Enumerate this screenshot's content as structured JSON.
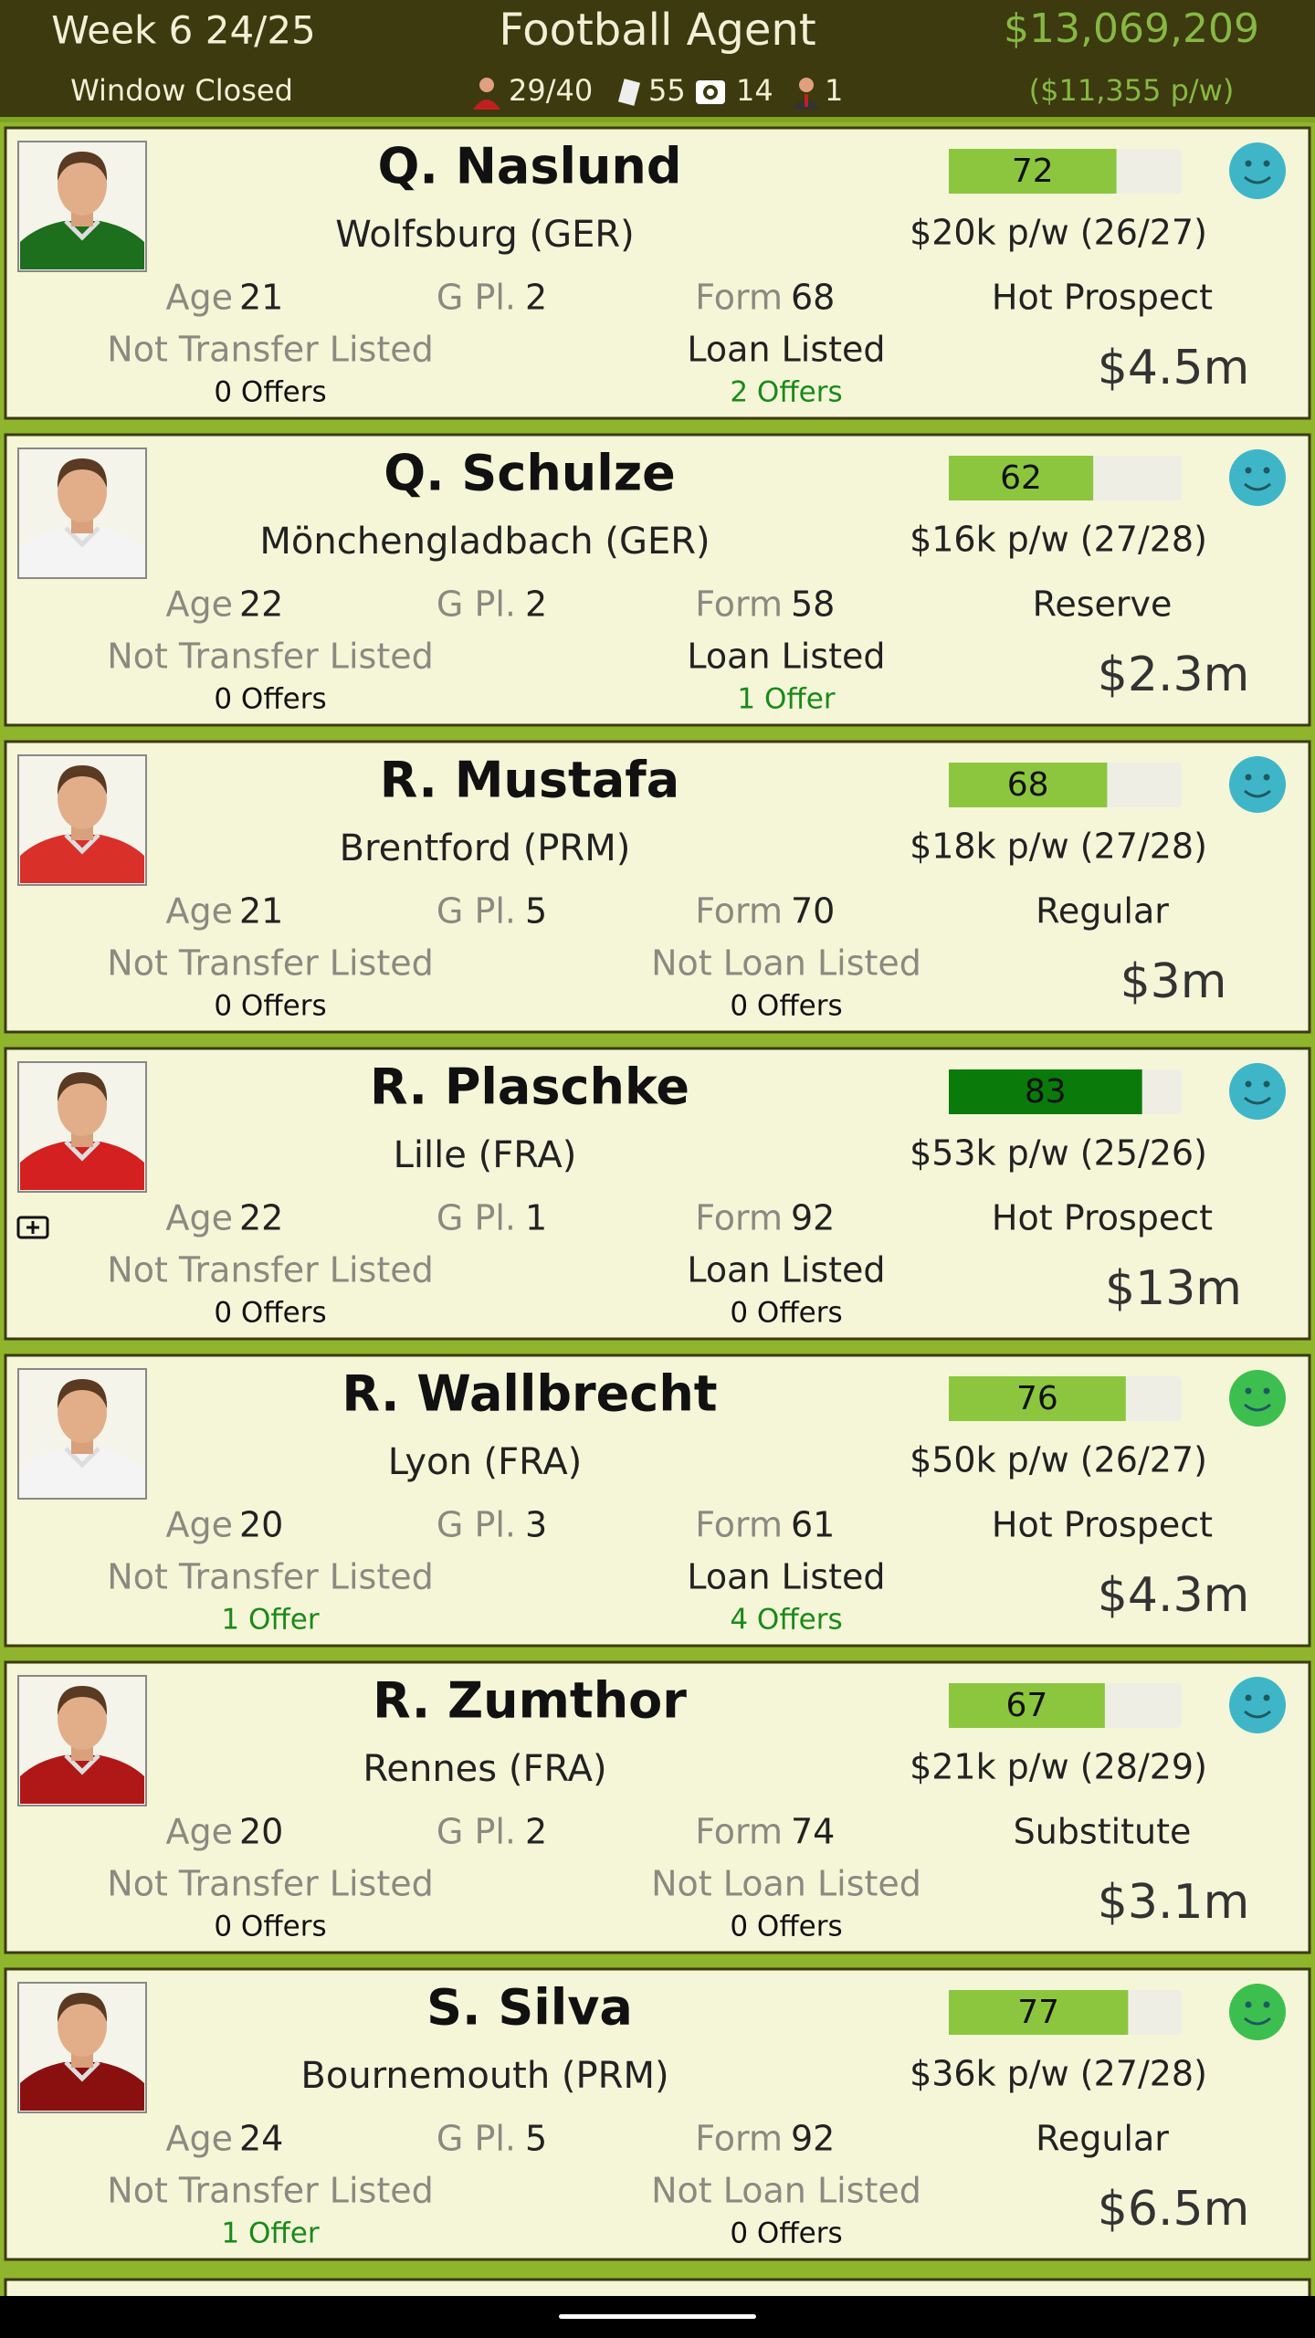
{
  "header": {
    "week": "Week 6 24/25",
    "window": "Window Closed",
    "title": "Football Agent",
    "balance": "$13,069,209",
    "wages": "($11,355 p/w)",
    "stats": [
      "29/40",
      "55",
      "14",
      "1"
    ]
  },
  "players": [
    {
      "name": "Q. Naslund",
      "club": "Wolfsburg (GER)",
      "rating": 72,
      "bar_color": "#8cc63f",
      "wage": "$20k p/w (26/27)",
      "age_label": "Age",
      "age": 21,
      "gpl_label": "G Pl.",
      "gpl": 2,
      "form_label": "Form",
      "form": 68,
      "role": "Hot Prospect",
      "transfer": "Not Transfer Listed",
      "transfer_offers": "0 Offers",
      "transfer_offers_color": "#111111",
      "loan": "Loan Listed",
      "loan_offers": "2 Offers",
      "loan_offers_color": "#1a8a1a",
      "value": "$4.5m",
      "mood_color": "#3fb6c8",
      "shirt": "#1d6e1d",
      "injured": false
    },
    {
      "name": "Q. Schulze",
      "club": "Mönchengladbach (GER)",
      "rating": 62,
      "bar_color": "#8cc63f",
      "wage": "$16k p/w (27/28)",
      "age_label": "Age",
      "age": 22,
      "gpl_label": "G Pl.",
      "gpl": 2,
      "form_label": "Form",
      "form": 58,
      "role": "Reserve",
      "transfer": "Not Transfer Listed",
      "transfer_offers": "0 Offers",
      "transfer_offers_color": "#111111",
      "loan": "Loan Listed",
      "loan_offers": "1 Offer",
      "loan_offers_color": "#1a8a1a",
      "value": "$2.3m",
      "mood_color": "#3fb6c8",
      "shirt": "#f4f4f4",
      "injured": false
    },
    {
      "name": "R. Mustafa",
      "club": "Brentford (PRM)",
      "rating": 68,
      "bar_color": "#8cc63f",
      "wage": "$18k p/w (27/28)",
      "age_label": "Age",
      "age": 21,
      "gpl_label": "G Pl.",
      "gpl": 5,
      "form_label": "Form",
      "form": 70,
      "role": "Regular",
      "transfer": "Not Transfer Listed",
      "transfer_offers": "0 Offers",
      "transfer_offers_color": "#111111",
      "loan": "Not Loan Listed",
      "loan_offers": "0 Offers",
      "loan_offers_color": "#111111",
      "value": "$3m",
      "mood_color": "#3fb6c8",
      "shirt": "#d9302a",
      "injured": false
    },
    {
      "name": "R. Plaschke",
      "club": "Lille (FRA)",
      "rating": 83,
      "bar_color": "#0a7a0a",
      "wage": "$53k p/w (25/26)",
      "age_label": "Age",
      "age": 22,
      "gpl_label": "G Pl.",
      "gpl": 1,
      "form_label": "Form",
      "form": 92,
      "role": "Hot Prospect",
      "transfer": "Not Transfer Listed",
      "transfer_offers": "0 Offers",
      "transfer_offers_color": "#111111",
      "loan": "Loan Listed",
      "loan_offers": "0 Offers",
      "loan_offers_color": "#111111",
      "value": "$13m",
      "mood_color": "#3fb6c8",
      "shirt": "#d42020",
      "injured": true
    },
    {
      "name": "R. Wallbrecht",
      "club": "Lyon (FRA)",
      "rating": 76,
      "bar_color": "#8cc63f",
      "wage": "$50k p/w (26/27)",
      "age_label": "Age",
      "age": 20,
      "gpl_label": "G Pl.",
      "gpl": 3,
      "form_label": "Form",
      "form": 61,
      "role": "Hot Prospect",
      "transfer": "Not Transfer Listed",
      "transfer_offers": "1 Offer",
      "transfer_offers_color": "#1a8a1a",
      "loan": "Loan Listed",
      "loan_offers": "4 Offers",
      "loan_offers_color": "#1a8a1a",
      "value": "$4.3m",
      "mood_color": "#3dbf4f",
      "shirt": "#f4f4f4",
      "injured": false
    },
    {
      "name": "R. Zumthor",
      "club": "Rennes (FRA)",
      "rating": 67,
      "bar_color": "#8cc63f",
      "wage": "$21k p/w (28/29)",
      "age_label": "Age",
      "age": 20,
      "gpl_label": "G Pl.",
      "gpl": 2,
      "form_label": "Form",
      "form": 74,
      "role": "Substitute",
      "transfer": "Not Transfer Listed",
      "transfer_offers": "0 Offers",
      "transfer_offers_color": "#111111",
      "loan": "Not Loan Listed",
      "loan_offers": "0 Offers",
      "loan_offers_color": "#111111",
      "value": "$3.1m",
      "mood_color": "#3fb6c8",
      "shirt": "#b01818",
      "injured": false
    },
    {
      "name": "S. Silva",
      "club": "Bournemouth (PRM)",
      "rating": 77,
      "bar_color": "#8cc63f",
      "wage": "$36k p/w (27/28)",
      "age_label": "Age",
      "age": 24,
      "gpl_label": "G Pl.",
      "gpl": 5,
      "form_label": "Form",
      "form": 92,
      "role": "Regular",
      "transfer": "Not Transfer Listed",
      "transfer_offers": "1 Offer",
      "transfer_offers_color": "#1a8a1a",
      "loan": "Not Loan Listed",
      "loan_offers": "0 Offers",
      "loan_offers_color": "#111111",
      "value": "$6.5m",
      "mood_color": "#3dbf4f",
      "shirt": "#8a1010",
      "injured": false
    }
  ]
}
